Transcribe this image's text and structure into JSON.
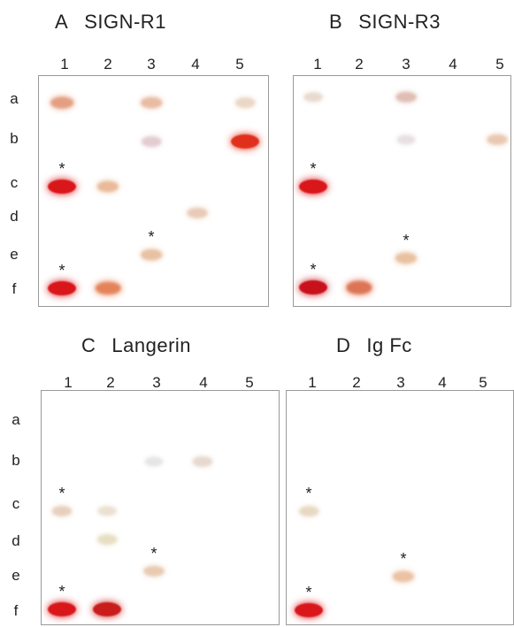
{
  "panels": [
    {
      "letter": "A",
      "title": "SIGN-R1",
      "columns": [
        "1",
        "2",
        "3",
        "4",
        "5"
      ],
      "rows": [
        "a",
        "b",
        "c",
        "d",
        "e",
        "f"
      ],
      "spots": [
        {
          "row": "a",
          "col": "1",
          "intensity": 0.55,
          "color": "#d9784f"
        },
        {
          "row": "a",
          "col": "3",
          "intensity": 0.4,
          "color": "#d99268"
        },
        {
          "row": "a",
          "col": "5",
          "intensity": 0.25,
          "color": "#d8b08e"
        },
        {
          "row": "b",
          "col": "3",
          "intensity": 0.25,
          "color": "#c79aa6"
        },
        {
          "row": "b",
          "col": "5",
          "intensity": 1.0,
          "color": "#e0301c"
        },
        {
          "row": "c",
          "col": "1",
          "intensity": 1.0,
          "color": "#d9161a"
        },
        {
          "row": "c",
          "col": "2",
          "intensity": 0.45,
          "color": "#dd9460"
        },
        {
          "row": "d",
          "col": "4",
          "intensity": 0.35,
          "color": "#d8a583"
        },
        {
          "row": "e",
          "col": "3",
          "intensity": 0.4,
          "color": "#d99a68"
        },
        {
          "row": "f",
          "col": "1",
          "intensity": 1.0,
          "color": "#d9161a"
        },
        {
          "row": "f",
          "col": "2",
          "intensity": 0.75,
          "color": "#e06c3a"
        }
      ],
      "stars": [
        {
          "row": "c",
          "col": "1"
        },
        {
          "row": "e",
          "col": "3"
        },
        {
          "row": "f",
          "col": "1"
        }
      ]
    },
    {
      "letter": "B",
      "title": "SIGN-R3",
      "columns": [
        "1",
        "2",
        "3",
        "4",
        "5"
      ],
      "rows": [],
      "spots": [
        {
          "row": "a",
          "col": "1",
          "intensity": 0.2,
          "color": "#cfb49a"
        },
        {
          "row": "a",
          "col": "3",
          "intensity": 0.35,
          "color": "#c9907e"
        },
        {
          "row": "b",
          "col": "3",
          "intensity": 0.15,
          "color": "#cdb8c2"
        },
        {
          "row": "b",
          "col": "5",
          "intensity": 0.35,
          "color": "#d9a27a"
        },
        {
          "row": "c",
          "col": "1",
          "intensity": 1.0,
          "color": "#d9161a"
        },
        {
          "row": "e",
          "col": "3",
          "intensity": 0.45,
          "color": "#dca06c"
        },
        {
          "row": "f",
          "col": "1",
          "intensity": 1.0,
          "color": "#c8111c"
        },
        {
          "row": "f",
          "col": "2",
          "intensity": 0.8,
          "color": "#d9603c"
        }
      ],
      "stars": [
        {
          "row": "c",
          "col": "1"
        },
        {
          "row": "e",
          "col": "3"
        },
        {
          "row": "f",
          "col": "1"
        }
      ]
    },
    {
      "letter": "C",
      "title": "Langerin",
      "columns": [
        "1",
        "2",
        "3",
        "4",
        "5"
      ],
      "rows": [
        "a",
        "b",
        "c",
        "d",
        "e",
        "f"
      ],
      "spots": [
        {
          "row": "b",
          "col": "3",
          "intensity": 0.15,
          "color": "#c9c6c6"
        },
        {
          "row": "b",
          "col": "4",
          "intensity": 0.3,
          "color": "#d2b9a5"
        },
        {
          "row": "c",
          "col": "1",
          "intensity": 0.3,
          "color": "#d4a886"
        },
        {
          "row": "c",
          "col": "2",
          "intensity": 0.2,
          "color": "#d6c0a0"
        },
        {
          "row": "d",
          "col": "2",
          "intensity": 0.25,
          "color": "#cfc08a"
        },
        {
          "row": "e",
          "col": "3",
          "intensity": 0.35,
          "color": "#d8a57a"
        },
        {
          "row": "f",
          "col": "1",
          "intensity": 1.0,
          "color": "#d9161a"
        },
        {
          "row": "f",
          "col": "2",
          "intensity": 1.0,
          "color": "#c81d1a"
        }
      ],
      "stars": [
        {
          "row": "c",
          "col": "1"
        },
        {
          "row": "e",
          "col": "3"
        },
        {
          "row": "f",
          "col": "1"
        }
      ]
    },
    {
      "letter": "D",
      "title": "Ig Fc",
      "columns": [
        "1",
        "2",
        "3",
        "4",
        "5"
      ],
      "rows": [],
      "spots": [
        {
          "row": "c",
          "col": "1",
          "intensity": 0.25,
          "color": "#d2b48a"
        },
        {
          "row": "e",
          "col": "3",
          "intensity": 0.45,
          "color": "#e0a070"
        },
        {
          "row": "f",
          "col": "1",
          "intensity": 1.0,
          "color": "#d9161a"
        }
      ],
      "stars": [
        {
          "row": "c",
          "col": "1"
        },
        {
          "row": "e",
          "col": "3"
        },
        {
          "row": "f",
          "col": "1"
        }
      ]
    }
  ]
}
